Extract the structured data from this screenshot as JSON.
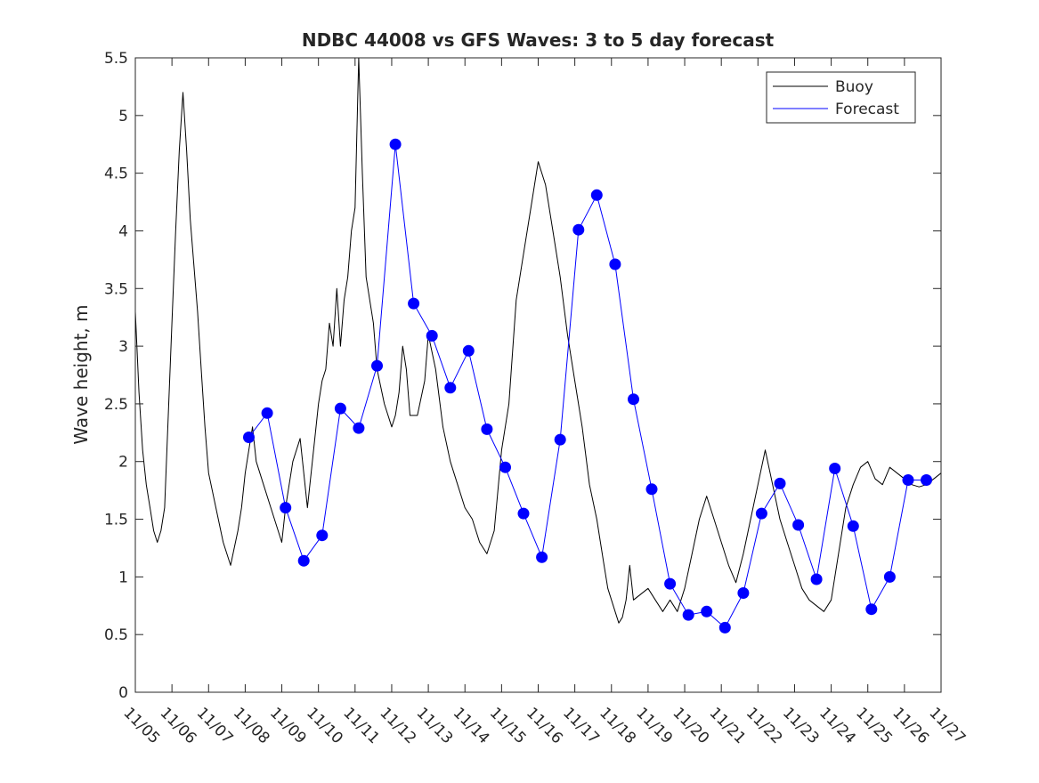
{
  "chart_data": {
    "type": "line",
    "title": "NDBC 44008 vs GFS Waves: 3 to 5 day forecast",
    "xlabel": "",
    "ylabel": "Wave height, m",
    "xlim": [
      0,
      22
    ],
    "ylim": [
      0,
      5.5
    ],
    "x_tick_labels": [
      "11/05",
      "11/06",
      "11/07",
      "11/08",
      "11/09",
      "11/10",
      "11/11",
      "11/12",
      "11/13",
      "11/14",
      "11/15",
      "11/16",
      "11/17",
      "11/18",
      "11/19",
      "11/20",
      "11/21",
      "11/22",
      "11/23",
      "11/24",
      "11/25",
      "11/26",
      "11/27"
    ],
    "y_tick_labels": [
      "0",
      "0.5",
      "1",
      "1.5",
      "2",
      "2.5",
      "3",
      "3.5",
      "4",
      "4.5",
      "5",
      "5.5"
    ],
    "grid": false,
    "legend": {
      "position": "top-right",
      "entries": [
        "Buoy",
        "Forecast"
      ]
    },
    "colors": {
      "buoy": "#000000",
      "forecast": "#0000ff",
      "axis": "#262626"
    },
    "series": [
      {
        "name": "Buoy",
        "x": [
          0,
          0.1,
          0.2,
          0.3,
          0.4,
          0.5,
          0.6,
          0.7,
          0.8,
          0.9,
          1.0,
          1.1,
          1.2,
          1.3,
          1.4,
          1.5,
          1.6,
          1.7,
          1.8,
          1.9,
          2.0,
          2.2,
          2.4,
          2.6,
          2.8,
          2.9,
          3.0,
          3.2,
          3.3,
          3.5,
          3.7,
          3.9,
          4.0,
          4.1,
          4.3,
          4.5,
          4.7,
          4.9,
          5.0,
          5.1,
          5.2,
          5.3,
          5.4,
          5.5,
          5.6,
          5.7,
          5.8,
          5.9,
          6.0,
          6.1,
          6.2,
          6.3,
          6.5,
          6.6,
          6.8,
          7.0,
          7.1,
          7.2,
          7.3,
          7.4,
          7.5,
          7.7,
          7.9,
          8.0,
          8.2,
          8.4,
          8.6,
          8.8,
          9.0,
          9.2,
          9.4,
          9.6,
          9.8,
          10.0,
          10.2,
          10.4,
          10.6,
          10.8,
          11.0,
          11.2,
          11.4,
          11.6,
          11.8,
          12.0,
          12.2,
          12.4,
          12.6,
          12.8,
          12.9,
          13.0,
          13.1,
          13.2,
          13.3,
          13.4,
          13.5,
          13.6,
          13.8,
          14.0,
          14.2,
          14.4,
          14.6,
          14.8,
          15.0,
          15.2,
          15.4,
          15.6,
          15.8,
          16.0,
          16.2,
          16.4,
          16.6,
          16.8,
          17.0,
          17.2,
          17.4,
          17.6,
          17.8,
          18.0,
          18.2,
          18.4,
          18.6,
          18.8,
          19.0,
          19.2,
          19.4,
          19.6,
          19.8,
          20.0,
          20.2,
          20.4,
          20.6,
          20.8,
          21.0,
          21.2,
          21.4,
          21.6,
          21.8,
          22.0
        ],
        "values": [
          3.3,
          2.6,
          2.1,
          1.8,
          1.6,
          1.4,
          1.3,
          1.4,
          1.6,
          2.4,
          3.2,
          4.0,
          4.7,
          5.2,
          4.7,
          4.1,
          3.7,
          3.3,
          2.8,
          2.3,
          1.9,
          1.6,
          1.3,
          1.1,
          1.4,
          1.6,
          1.9,
          2.3,
          2.0,
          1.8,
          1.6,
          1.4,
          1.3,
          1.6,
          2.0,
          2.2,
          1.6,
          2.2,
          2.5,
          2.7,
          2.8,
          3.2,
          3.0,
          3.5,
          3.0,
          3.4,
          3.6,
          4.0,
          4.2,
          5.5,
          4.5,
          3.6,
          3.2,
          2.8,
          2.5,
          2.3,
          2.4,
          2.6,
          3.0,
          2.8,
          2.4,
          2.4,
          2.7,
          3.1,
          2.8,
          2.3,
          2.0,
          1.8,
          1.6,
          1.5,
          1.3,
          1.2,
          1.4,
          2.1,
          2.5,
          3.4,
          3.8,
          4.2,
          4.6,
          4.4,
          4.0,
          3.6,
          3.1,
          2.7,
          2.3,
          1.8,
          1.5,
          1.1,
          0.9,
          0.8,
          0.7,
          0.6,
          0.65,
          0.8,
          1.1,
          0.8,
          0.85,
          0.9,
          0.8,
          0.7,
          0.8,
          0.7,
          0.9,
          1.2,
          1.5,
          1.7,
          1.5,
          1.3,
          1.1,
          0.95,
          1.2,
          1.5,
          1.8,
          2.1,
          1.8,
          1.5,
          1.3,
          1.1,
          0.9,
          0.8,
          0.75,
          0.7,
          0.8,
          1.2,
          1.6,
          1.8,
          1.95,
          2.0,
          1.85,
          1.8,
          1.95,
          1.9,
          1.85,
          1.8,
          1.78,
          1.8,
          1.85,
          1.9
        ]
      },
      {
        "name": "Forecast",
        "x": [
          3.1,
          3.6,
          4.1,
          4.6,
          5.1,
          5.6,
          6.1,
          6.6,
          7.1,
          7.6,
          8.1,
          8.6,
          9.1,
          9.6,
          10.1,
          10.6,
          11.1,
          11.6,
          12.1,
          12.6,
          13.1,
          13.6,
          14.1,
          14.6,
          15.1,
          15.6,
          16.1,
          16.6,
          17.1,
          17.6,
          18.1,
          18.6,
          19.1,
          19.6,
          20.1,
          20.6,
          21.1,
          21.6
        ],
        "values": [
          2.21,
          2.42,
          1.6,
          1.14,
          1.36,
          2.46,
          2.29,
          2.83,
          4.75,
          3.37,
          3.09,
          2.64,
          2.96,
          2.28,
          1.95,
          1.55,
          1.17,
          2.19,
          4.01,
          4.31,
          3.71,
          2.54,
          1.76,
          0.94,
          0.67,
          0.7,
          0.56,
          0.86,
          1.55,
          1.81,
          1.45,
          0.98,
          1.94,
          1.44,
          0.72,
          1.0,
          1.84,
          1.84
        ]
      }
    ]
  }
}
